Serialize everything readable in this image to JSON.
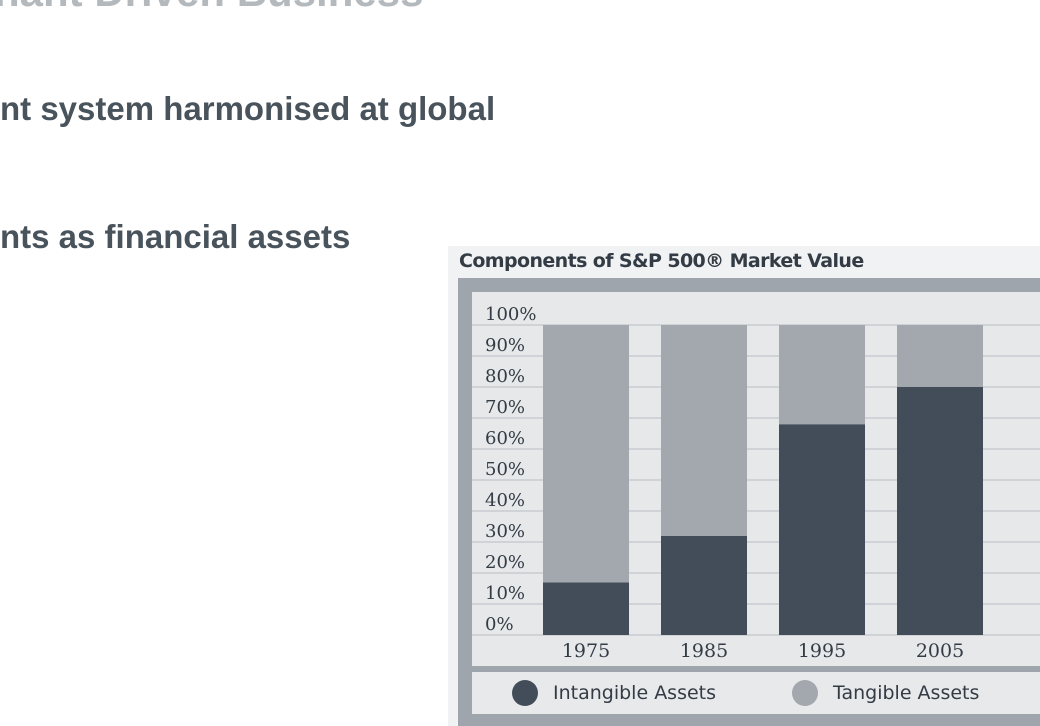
{
  "slide": {
    "title": "nant Driven Business",
    "bullets": [
      "nt system harmonised at global",
      "nts as financial assets"
    ]
  },
  "colors": {
    "intangible": "#434d59",
    "tangible": "#a3a8ae",
    "plot_bg": "#e6e8ea",
    "frame": "#9ea5ac",
    "grid": "#b8bdc2",
    "text": "#333c45"
  },
  "chart_data": {
    "type": "bar",
    "stacked": true,
    "title": "Components of S&P 500® Market Value",
    "categories": [
      "1975",
      "1985",
      "1995",
      "2005"
    ],
    "series": [
      {
        "name": "Intangible Assets",
        "values": [
          17,
          32,
          68,
          80
        ]
      },
      {
        "name": "Tangible Assets",
        "values": [
          83,
          68,
          32,
          20
        ]
      }
    ],
    "y_ticks": [
      "100%",
      "90%",
      "80%",
      "70%",
      "60%",
      "50%",
      "40%",
      "30%",
      "20%",
      "10%",
      "0%"
    ],
    "ylim": [
      0,
      100
    ],
    "grid": true,
    "legend": "bottom"
  }
}
